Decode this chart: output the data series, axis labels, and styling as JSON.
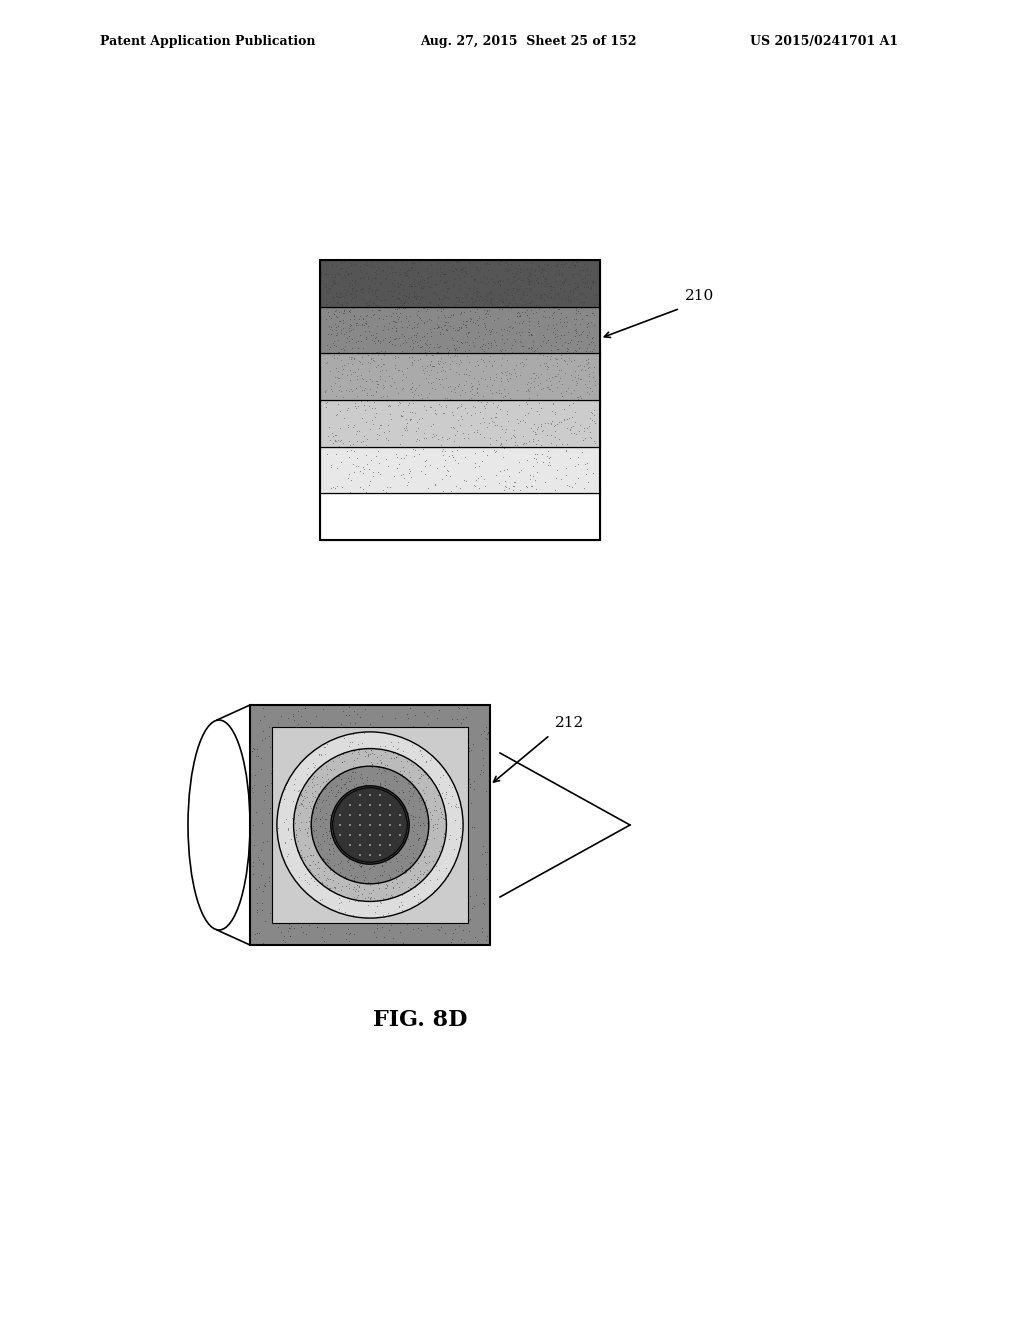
{
  "bg_color": "#ffffff",
  "header_text1": "Patent Application Publication",
  "header_text2": "Aug. 27, 2015  Sheet 25 of 152",
  "header_text3": "US 2015/0241701 A1",
  "fig_label": "FIG. 8D",
  "label_210": "210",
  "label_212": "212",
  "page_width": 10.24,
  "page_height": 13.2
}
